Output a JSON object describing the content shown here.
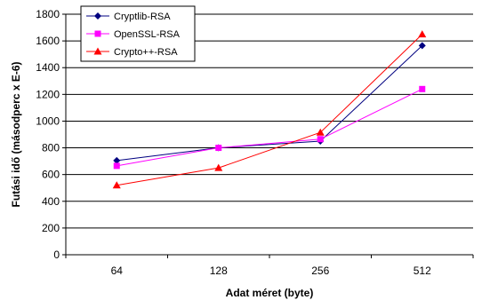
{
  "chart_data": {
    "type": "line",
    "title": "",
    "xlabel": "Adat méret (byte)",
    "ylabel": "Futási idő (másodperc x E-6)",
    "categories": [
      "64",
      "128",
      "256",
      "512"
    ],
    "ylim": [
      0,
      1800
    ],
    "yticks": [
      0,
      200,
      400,
      600,
      800,
      1000,
      1200,
      1400,
      1600,
      1800
    ],
    "grid": true,
    "legend_position": "top-left",
    "series": [
      {
        "name": "Cryptlib-RSA",
        "values": [
          705,
          800,
          850,
          1565
        ],
        "color": "#000080",
        "marker": "diamond"
      },
      {
        "name": "OpenSSL-RSA",
        "values": [
          665,
          800,
          865,
          1240
        ],
        "color": "#ff00ff",
        "marker": "square"
      },
      {
        "name": "Crypto++-RSA",
        "values": [
          520,
          650,
          915,
          1650
        ],
        "color": "#ff0000",
        "marker": "triangle"
      }
    ]
  }
}
